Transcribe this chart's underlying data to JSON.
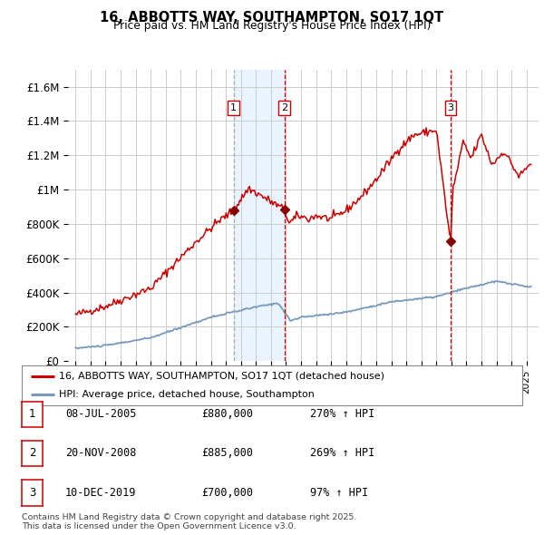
{
  "title": "16, ABBOTTS WAY, SOUTHAMPTON, SO17 1QT",
  "subtitle": "Price paid vs. HM Land Registry's House Price Index (HPI)",
  "ylabel_ticks": [
    "£0",
    "£200K",
    "£400K",
    "£600K",
    "£800K",
    "£1M",
    "£1.2M",
    "£1.4M",
    "£1.6M"
  ],
  "ytick_values": [
    0,
    200000,
    400000,
    600000,
    800000,
    1000000,
    1200000,
    1400000,
    1600000
  ],
  "ylim": [
    0,
    1700000
  ],
  "xlim_start": 1994.5,
  "xlim_end": 2025.8,
  "sale_points": [
    {
      "date_num": 2005.52,
      "price": 880000,
      "label": "1"
    },
    {
      "date_num": 2008.9,
      "price": 885000,
      "label": "2"
    },
    {
      "date_num": 2019.95,
      "price": 700000,
      "label": "3"
    }
  ],
  "shade_x1": 2005.52,
  "shade_x2": 2008.9,
  "legend_line1": "16, ABBOTTS WAY, SOUTHAMPTON, SO17 1QT (detached house)",
  "legend_line2": "HPI: Average price, detached house, Southampton",
  "table_rows": [
    {
      "num": "1",
      "date": "08-JUL-2005",
      "price": "£880,000",
      "hpi": "270% ↑ HPI"
    },
    {
      "num": "2",
      "date": "20-NOV-2008",
      "price": "£885,000",
      "hpi": "269% ↑ HPI"
    },
    {
      "num": "3",
      "date": "10-DEC-2019",
      "price": "£700,000",
      "hpi": "97% ↑ HPI"
    }
  ],
  "footer": "Contains HM Land Registry data © Crown copyright and database right 2025.\nThis data is licensed under the Open Government Licence v3.0.",
  "red_line_color": "#cc0000",
  "blue_line_color": "#7799bb",
  "background_color": "#ffffff",
  "grid_color": "#cccccc",
  "shade_color": "#ddeeff"
}
